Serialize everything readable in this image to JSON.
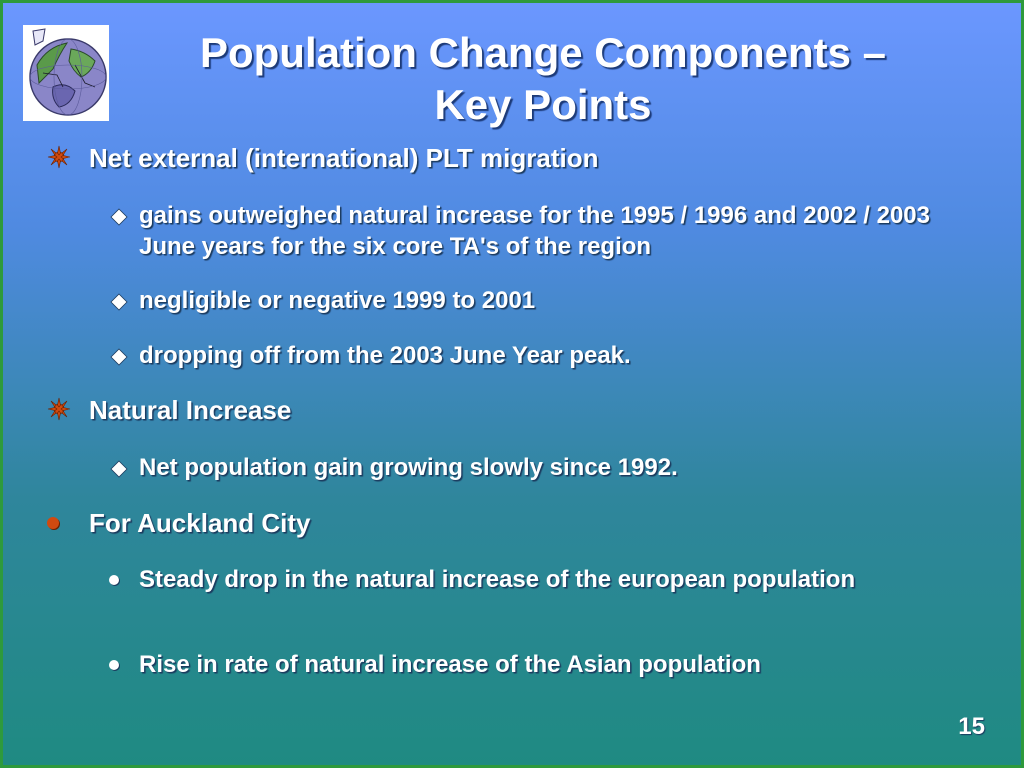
{
  "slide": {
    "title_line1": "Population Change Components –",
    "title_line2": "Key Points",
    "page_number": "15"
  },
  "bullets": {
    "b1": {
      "text": "Net external (international) PLT migration",
      "sub1": "gains outweighed natural increase for the 1995 / 1996 and 2002 / 2003 June years for the six core TA's of the region",
      "sub2": "negligible or negative 1999 to 2001",
      "sub3": "dropping off from the 2003 June Year peak."
    },
    "b2": {
      "text": "Natural Increase",
      "sub1": "Net population gain growing slowly since 1992."
    },
    "b3": {
      "text": "For Auckland City",
      "sub1": "Steady drop in the natural increase of the european population",
      "sub2": "Rise in rate of natural increase of the Asian population"
    }
  },
  "colors": {
    "border": "#2e9a3c",
    "gradient_top": "#6b97ff",
    "gradient_bottom": "#1f8a82",
    "bullet_star": "#d04a10",
    "bullet_dot": "#d04a10"
  },
  "icons": {
    "logo": "globe-icon",
    "level1_a": "star-bullet-icon",
    "level2_a": "diamond-bullet-icon",
    "level1_b": "dot-bullet-icon",
    "level2_b": "dot-bullet-icon"
  }
}
